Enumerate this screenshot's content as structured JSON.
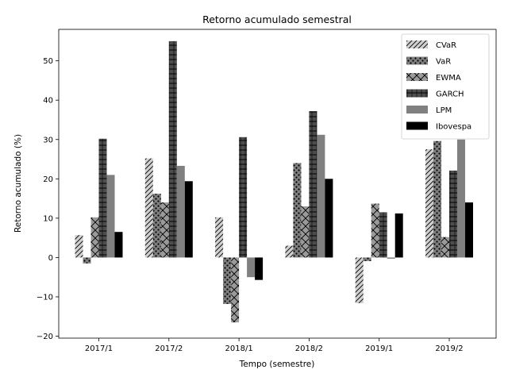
{
  "chart_data": {
    "type": "bar",
    "title": "Retorno acumulado semestral",
    "xlabel": "Tempo (semestre)",
    "ylabel": "Retorno acumulado (%)",
    "categories": [
      "2017/1",
      "2017/2",
      "2018/1",
      "2018/2",
      "2019/1",
      "2019/2"
    ],
    "ylim": [
      -20.5,
      58
    ],
    "yticks": [
      -20,
      -10,
      0,
      10,
      20,
      30,
      40,
      50
    ],
    "yticklabels": [
      "−20",
      "−10",
      "0",
      "10",
      "20",
      "30",
      "40",
      "50"
    ],
    "grid": false,
    "legend_position": "top-right",
    "series": [
      {
        "name": "CVaR",
        "color": "#cfcfcf",
        "pattern": "diagonal-hatch",
        "values": [
          5.7,
          25.2,
          10.2,
          3.0,
          -11.6,
          27.5
        ]
      },
      {
        "name": "VaR",
        "color": "#7f7f7f",
        "pattern": "dots",
        "values": [
          -1.5,
          16.2,
          -11.8,
          24.0,
          -0.9,
          29.6
        ]
      },
      {
        "name": "EWMA",
        "color": "#9a9a9a",
        "pattern": "cross-hatch",
        "values": [
          10.2,
          14.0,
          -16.5,
          13.0,
          13.7,
          5.2
        ]
      },
      {
        "name": "GARCH",
        "color": "#4d4d4d",
        "pattern": "horizontal-lines",
        "values": [
          30.2,
          55.0,
          30.6,
          37.2,
          11.5,
          22.1
        ]
      },
      {
        "name": "LPM",
        "color": "#808080",
        "pattern": "solid",
        "values": [
          21.0,
          23.3,
          -5.0,
          31.2,
          -0.3,
          30.0
        ]
      },
      {
        "name": "Ibovespa",
        "color": "#000000",
        "pattern": "solid",
        "values": [
          6.5,
          19.4,
          -5.7,
          20.0,
          11.2,
          14.0
        ]
      }
    ]
  }
}
